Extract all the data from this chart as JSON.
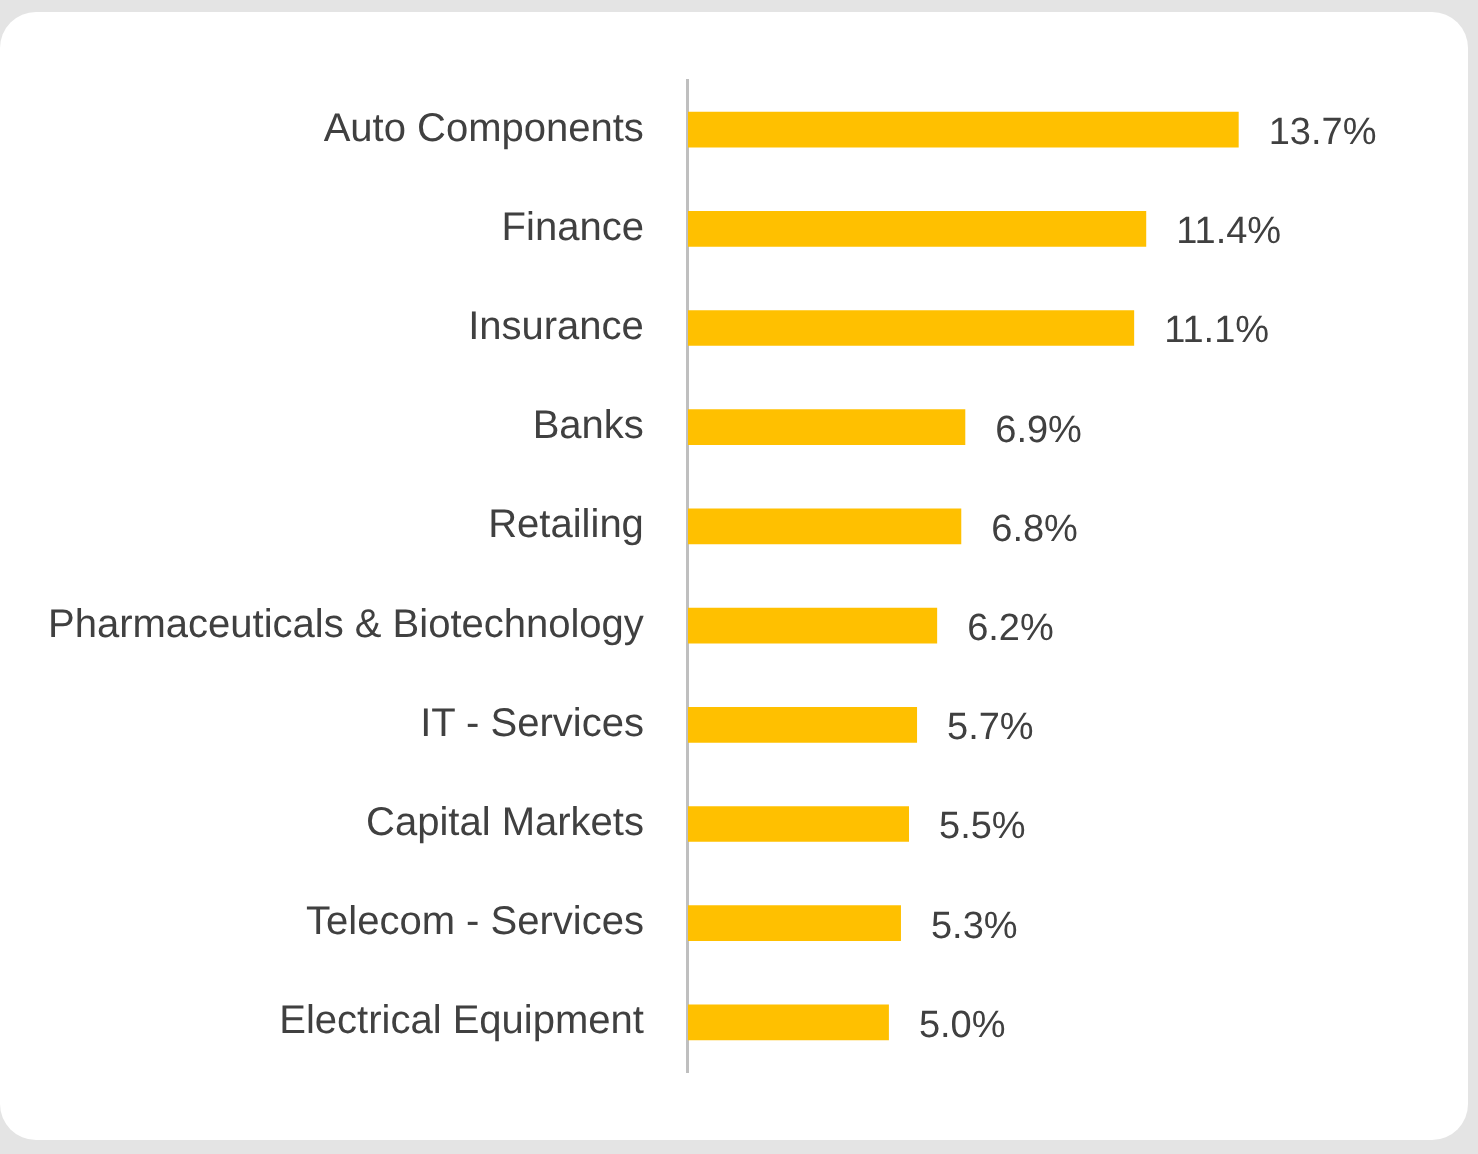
{
  "chart_data": {
    "type": "bar",
    "orientation": "horizontal",
    "categories": [
      "Auto Components",
      "Finance",
      "Insurance",
      "Banks",
      "Retailing",
      "Pharmaceuticals & Biotechnology",
      "IT - Services",
      "Capital Markets",
      "Telecom - Services",
      "Electrical Equipment"
    ],
    "values": [
      13.7,
      11.4,
      11.1,
      6.9,
      6.8,
      6.2,
      5.7,
      5.5,
      5.3,
      5.0
    ],
    "value_labels": [
      "13.7%",
      "11.4%",
      "11.1%",
      "6.9%",
      "6.8%",
      "6.2%",
      "5.7%",
      "5.5%",
      "5.3%",
      "5.0%"
    ],
    "color": "#ffc000",
    "legend": false
  }
}
